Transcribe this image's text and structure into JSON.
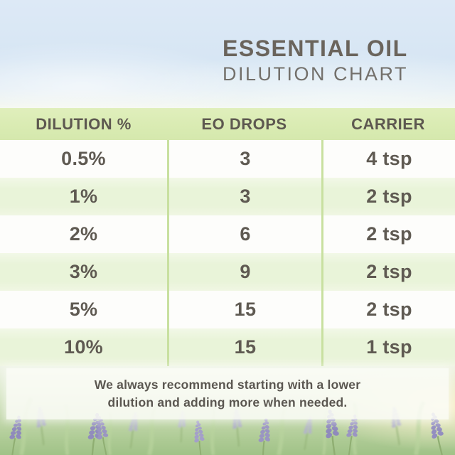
{
  "title": {
    "line1": "ESSENTIAL OIL",
    "line2": "DILUTION CHART"
  },
  "table": {
    "headers": [
      "DILUTION %",
      "EO DROPS",
      "CARRIER"
    ],
    "rows": [
      [
        "0.5%",
        "3",
        "4 tsp"
      ],
      [
        "1%",
        "3",
        "2 tsp"
      ],
      [
        "2%",
        "6",
        "2 tsp"
      ],
      [
        "3%",
        "9",
        "2 tsp"
      ],
      [
        "5%",
        "15",
        "2 tsp"
      ],
      [
        "10%",
        "15",
        "1 tsp"
      ]
    ]
  },
  "footer": {
    "note": "We always recommend starting with a lower dilution and adding more when needed."
  },
  "colors": {
    "header_band_green": "#d9ebb2",
    "row_light_green": "#e9f4d9",
    "row_white": "#fdfdfb",
    "column_divider_green": "#c8e0a0",
    "table_text": "#5f5a52",
    "title_text": "#6a645c",
    "subtitle_text": "#73706b",
    "footer_text": "#5b5751",
    "sky_blue": "#d7e6f4",
    "lavender_purple": "#9a95c2",
    "grass_green": "#a0c287"
  },
  "chart_data": {
    "type": "table",
    "title": "Essential Oil Dilution Chart",
    "columns": [
      "DILUTION %",
      "EO DROPS",
      "CARRIER"
    ],
    "rows": [
      {
        "dilution_percent": "0.5%",
        "eo_drops": 3,
        "carrier": "4 tsp"
      },
      {
        "dilution_percent": "1%",
        "eo_drops": 3,
        "carrier": "2 tsp"
      },
      {
        "dilution_percent": "2%",
        "eo_drops": 6,
        "carrier": "2 tsp"
      },
      {
        "dilution_percent": "3%",
        "eo_drops": 9,
        "carrier": "2 tsp"
      },
      {
        "dilution_percent": "5%",
        "eo_drops": 15,
        "carrier": "2 tsp"
      },
      {
        "dilution_percent": "10%",
        "eo_drops": 15,
        "carrier": "1 tsp"
      }
    ],
    "note": "We always recommend starting with a lower dilution and adding more when needed."
  }
}
